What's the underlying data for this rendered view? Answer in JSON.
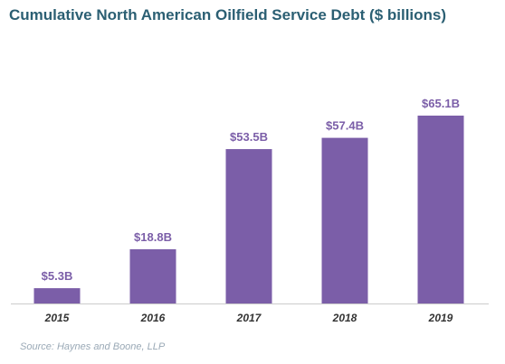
{
  "title": "Cumulative North American Oilfield Service Debt ($ billions)",
  "source": "Source: Haynes and Boone, LLP",
  "colors": {
    "title": "#2b5f73",
    "bar": "#7b5ea8",
    "bar_label": "#7b5ea8",
    "tick_label": "#333333",
    "axis": "#cccccc",
    "source": "#9aa9b6"
  },
  "chart_data": {
    "type": "bar",
    "title": "Cumulative North American Oilfield Service Debt ($ billions)",
    "xlabel": "",
    "ylabel": "",
    "categories": [
      "2015",
      "2016",
      "2017",
      "2018",
      "2019"
    ],
    "values": [
      5.3,
      18.8,
      53.5,
      57.4,
      65.1
    ],
    "data_labels": [
      "$5.3B",
      "$18.8B",
      "$53.5B",
      "$57.4B",
      "$65.1B"
    ],
    "ylim": [
      0,
      65.1
    ],
    "grid": false,
    "legend": "none"
  }
}
